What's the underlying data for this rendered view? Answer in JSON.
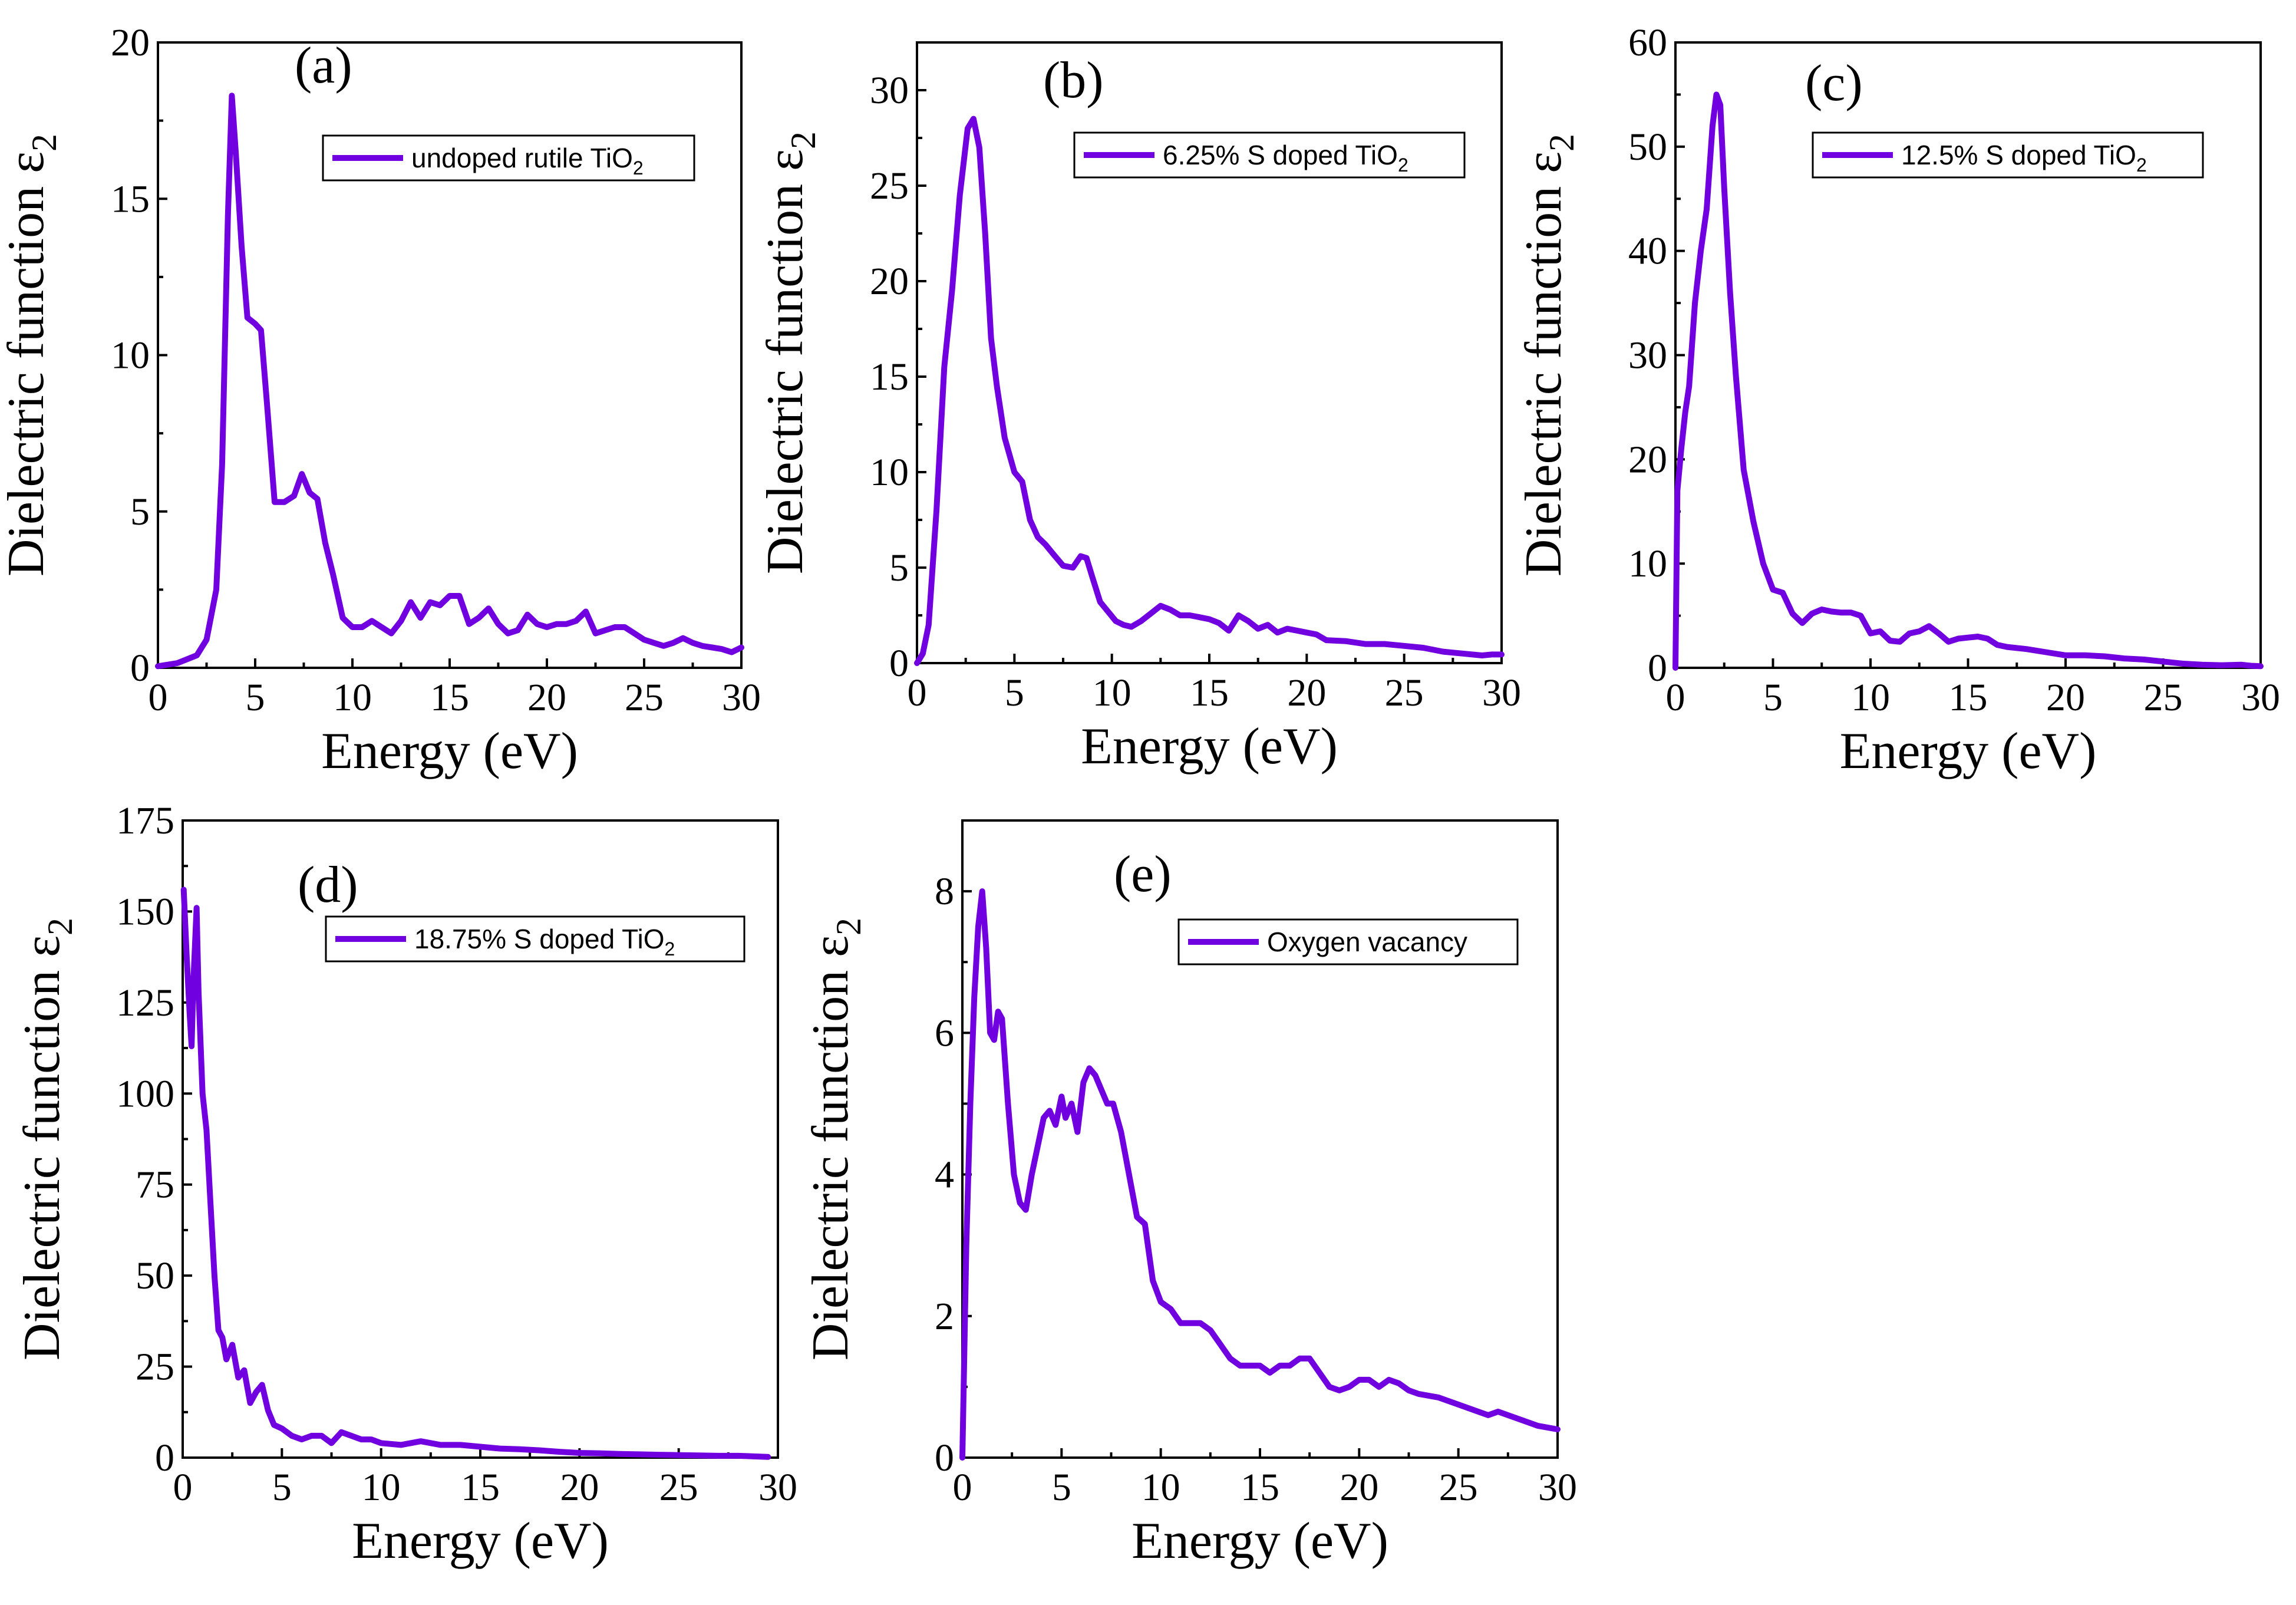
{
  "colors": {
    "series": "#7000e0",
    "axis": "#000000",
    "background": "#ffffff"
  },
  "chart_data": [
    {
      "type": "line",
      "panel_label": "(a)",
      "xlabel": "Energy (eV)",
      "ylabel_main": "Dielectric function ε",
      "ylabel_sub": "2",
      "xlim": [
        0,
        30
      ],
      "ylim": [
        0,
        20
      ],
      "xticks": [
        0,
        5,
        10,
        15,
        20,
        25,
        30
      ],
      "yticks": [
        0,
        5,
        10,
        15,
        20
      ],
      "legend_main": "undoped rutile TiO",
      "legend_sub": "2",
      "legend_position": "top-right",
      "series": [
        {
          "name": "undoped rutile TiO2",
          "x": [
            0,
            1,
            2,
            2.5,
            3,
            3.3,
            3.6,
            3.8,
            4.0,
            4.3,
            4.6,
            5.0,
            5.3,
            5.6,
            6.0,
            6.5,
            7.0,
            7.4,
            7.8,
            8.2,
            8.6,
            9.0,
            9.5,
            10.0,
            10.5,
            11.0,
            11.5,
            12.0,
            12.5,
            13.0,
            13.5,
            14.0,
            14.5,
            15.0,
            15.5,
            16.0,
            16.5,
            17.0,
            17.5,
            18.0,
            18.5,
            19.0,
            19.5,
            20.0,
            20.5,
            21.0,
            21.5,
            22.0,
            22.5,
            23.0,
            23.5,
            24.0,
            24.5,
            25.0,
            25.5,
            26.0,
            26.5,
            27.0,
            27.5,
            28.0,
            28.5,
            29.0,
            29.5,
            30.0
          ],
          "y": [
            0.05,
            0.15,
            0.4,
            0.9,
            2.5,
            6.5,
            14.5,
            18.3,
            16.5,
            13.5,
            11.2,
            11.0,
            10.8,
            8.5,
            5.3,
            5.3,
            5.5,
            6.2,
            5.6,
            5.4,
            4.0,
            3.0,
            1.6,
            1.3,
            1.3,
            1.5,
            1.3,
            1.1,
            1.5,
            2.1,
            1.6,
            2.1,
            2.0,
            2.3,
            2.3,
            1.4,
            1.6,
            1.9,
            1.4,
            1.1,
            1.2,
            1.7,
            1.4,
            1.3,
            1.4,
            1.4,
            1.5,
            1.8,
            1.1,
            1.2,
            1.3,
            1.3,
            1.1,
            0.9,
            0.8,
            0.7,
            0.8,
            0.95,
            0.8,
            0.7,
            0.65,
            0.6,
            0.5,
            0.65
          ]
        }
      ]
    },
    {
      "type": "line",
      "panel_label": "(b)",
      "xlabel": "Energy (eV)",
      "ylabel_main": "Dielectric function ε",
      "ylabel_sub": "2",
      "xlim": [
        0,
        30
      ],
      "ylim": [
        0,
        32.5
      ],
      "xticks": [
        0,
        5,
        10,
        15,
        20,
        25,
        30
      ],
      "yticks": [
        0,
        5,
        10,
        15,
        20,
        25,
        30
      ],
      "legend_main": "6.25% S doped TiO",
      "legend_sub": "2",
      "legend_position": "top-right",
      "series": [
        {
          "name": "6.25% S doped TiO2",
          "x": [
            0,
            0.3,
            0.6,
            1.0,
            1.4,
            1.8,
            2.2,
            2.6,
            2.9,
            3.2,
            3.5,
            3.8,
            4.1,
            4.5,
            5.0,
            5.4,
            5.8,
            6.2,
            6.6,
            7.0,
            7.5,
            8.0,
            8.4,
            8.7,
            9.0,
            9.4,
            9.8,
            10.2,
            10.6,
            11.0,
            11.5,
            12.0,
            12.5,
            13.0,
            13.5,
            14.0,
            14.5,
            15.0,
            15.5,
            16.0,
            16.5,
            17.0,
            17.5,
            18.0,
            18.5,
            19.0,
            19.5,
            20.0,
            20.5,
            21.0,
            22.0,
            23.0,
            24.0,
            25.0,
            26.0,
            27.0,
            28.0,
            29.0,
            29.5,
            30.0
          ],
          "y": [
            0,
            0.5,
            2.0,
            8.0,
            15.5,
            19.5,
            24.5,
            28.0,
            28.5,
            27.0,
            22.5,
            17.0,
            14.5,
            11.8,
            10.0,
            9.5,
            7.5,
            6.6,
            6.2,
            5.7,
            5.1,
            5.0,
            5.6,
            5.5,
            4.5,
            3.2,
            2.7,
            2.2,
            2.0,
            1.9,
            2.2,
            2.6,
            3.0,
            2.8,
            2.5,
            2.5,
            2.4,
            2.3,
            2.1,
            1.7,
            2.5,
            2.2,
            1.8,
            2.0,
            1.6,
            1.8,
            1.7,
            1.6,
            1.5,
            1.2,
            1.15,
            1.0,
            1.0,
            0.9,
            0.8,
            0.6,
            0.5,
            0.4,
            0.45,
            0.45
          ]
        }
      ]
    },
    {
      "type": "line",
      "panel_label": "(c)",
      "xlabel": "Energy (eV)",
      "ylabel_main": "Dielectric function ε",
      "ylabel_sub": "2",
      "xlim": [
        0,
        30
      ],
      "ylim": [
        0,
        60
      ],
      "xticks": [
        0,
        5,
        10,
        15,
        20,
        25,
        30
      ],
      "yticks": [
        0,
        10,
        20,
        30,
        40,
        50,
        60
      ],
      "legend_main": "12.5% S doped TiO",
      "legend_sub": "2",
      "legend_position": "top-right",
      "series": [
        {
          "name": "12.5% S doped TiO2",
          "x": [
            0,
            0.1,
            0.3,
            0.5,
            0.7,
            1.0,
            1.3,
            1.6,
            1.9,
            2.1,
            2.3,
            2.5,
            2.8,
            3.1,
            3.5,
            4.0,
            4.5,
            5.0,
            5.5,
            6.0,
            6.5,
            7.0,
            7.5,
            8.0,
            8.5,
            9.0,
            9.5,
            10.0,
            10.5,
            11.0,
            11.5,
            12.0,
            12.5,
            13.0,
            13.5,
            14.0,
            14.5,
            15.0,
            15.5,
            16.0,
            16.5,
            17.0,
            18.0,
            19.0,
            20.0,
            21.0,
            22.0,
            23.0,
            24.0,
            25.0,
            26.0,
            27.0,
            28.0,
            29.0,
            29.5,
            30.0
          ],
          "y": [
            0,
            17,
            21,
            24.5,
            27,
            35,
            40,
            44,
            52,
            55,
            54,
            46,
            36,
            28,
            19,
            14,
            10,
            7.5,
            7.2,
            5.2,
            4.3,
            5.2,
            5.6,
            5.4,
            5.3,
            5.3,
            5.0,
            3.3,
            3.5,
            2.6,
            2.5,
            3.3,
            3.5,
            4.0,
            3.3,
            2.5,
            2.8,
            2.9,
            3.0,
            2.8,
            2.2,
            2.0,
            1.8,
            1.5,
            1.2,
            1.2,
            1.1,
            0.9,
            0.8,
            0.6,
            0.4,
            0.3,
            0.25,
            0.3,
            0.2,
            0.15
          ]
        }
      ]
    },
    {
      "type": "line",
      "panel_label": "(d)",
      "xlabel": "Energy (eV)",
      "ylabel_main": "Dielectric function ε",
      "ylabel_sub": "2",
      "xlim": [
        0,
        30
      ],
      "ylim": [
        0,
        175
      ],
      "xticks": [
        0,
        5,
        10,
        15,
        20,
        25,
        30
      ],
      "yticks": [
        0,
        25,
        50,
        75,
        100,
        125,
        150,
        175
      ],
      "legend_main": "18.75% S doped TiO",
      "legend_sub": "2",
      "legend_position": "top-right",
      "series": [
        {
          "name": "18.75% S doped TiO2",
          "x": [
            0.05,
            0.2,
            0.35,
            0.45,
            0.55,
            0.7,
            0.8,
            1.0,
            1.2,
            1.4,
            1.6,
            1.8,
            2.0,
            2.2,
            2.5,
            2.8,
            3.1,
            3.4,
            3.7,
            4.0,
            4.3,
            4.6,
            5.0,
            5.5,
            6.0,
            6.5,
            7.0,
            7.5,
            8.0,
            8.5,
            9.0,
            9.5,
            10.0,
            11.0,
            12.0,
            13.0,
            14.0,
            15.0,
            16.0,
            17.0,
            18.0,
            19.0,
            20.0,
            21.0,
            22.0,
            23.0,
            24.0,
            25.0,
            26.0,
            27.0,
            28.0,
            29.0,
            29.5
          ],
          "y": [
            156,
            138,
            122,
            113,
            132,
            151,
            128,
            100,
            90,
            70,
            50,
            35,
            33,
            27,
            31,
            22,
            24,
            15,
            18,
            20,
            13,
            9,
            8,
            6,
            5,
            6,
            6,
            4,
            7,
            6,
            5,
            5,
            4,
            3.5,
            4.5,
            3.5,
            3.5,
            3,
            2.5,
            2.3,
            2,
            1.6,
            1.3,
            1.2,
            1.0,
            0.9,
            0.8,
            0.7,
            0.6,
            0.5,
            0.5,
            0.3,
            0.2
          ]
        }
      ]
    },
    {
      "type": "line",
      "panel_label": "(e)",
      "xlabel": "Energy (eV)",
      "ylabel_main": "Dielectric function ε",
      "ylabel_sub": "2",
      "xlim": [
        0,
        30
      ],
      "ylim": [
        0,
        9
      ],
      "xticks": [
        0,
        5,
        10,
        15,
        20,
        25,
        30
      ],
      "yticks": [
        0,
        2,
        4,
        6,
        8
      ],
      "legend_main": "Oxygen vacancy",
      "legend_sub": "",
      "legend_position": "top-right",
      "series": [
        {
          "name": "Oxygen vacancy",
          "x": [
            0,
            0.2,
            0.4,
            0.6,
            0.8,
            1.0,
            1.2,
            1.4,
            1.6,
            1.8,
            2.0,
            2.3,
            2.6,
            2.9,
            3.2,
            3.5,
            3.8,
            4.1,
            4.4,
            4.7,
            5.0,
            5.2,
            5.5,
            5.8,
            6.1,
            6.4,
            6.7,
            7.0,
            7.3,
            7.6,
            8.0,
            8.4,
            8.8,
            9.2,
            9.6,
            10.0,
            10.5,
            11.0,
            11.5,
            12.0,
            12.5,
            13.0,
            13.5,
            14.0,
            14.5,
            15.0,
            15.5,
            16.0,
            16.5,
            17.0,
            17.5,
            18.0,
            18.5,
            19.0,
            19.5,
            20.0,
            20.5,
            21.0,
            21.5,
            22.0,
            22.5,
            23.0,
            24.0,
            25.0,
            26.0,
            26.5,
            27.0,
            28.0,
            29.0,
            30.0
          ],
          "y": [
            0,
            3.0,
            5.0,
            6.5,
            7.5,
            8.0,
            7.2,
            6.0,
            5.9,
            6.3,
            6.2,
            5.0,
            4.0,
            3.6,
            3.5,
            4.0,
            4.4,
            4.8,
            4.9,
            4.7,
            5.1,
            4.8,
            5.0,
            4.6,
            5.3,
            5.5,
            5.4,
            5.2,
            5.0,
            5.0,
            4.6,
            4.0,
            3.4,
            3.3,
            2.5,
            2.2,
            2.1,
            1.9,
            1.9,
            1.9,
            1.8,
            1.6,
            1.4,
            1.3,
            1.3,
            1.3,
            1.2,
            1.3,
            1.3,
            1.4,
            1.4,
            1.2,
            1.0,
            0.95,
            1.0,
            1.1,
            1.1,
            1.0,
            1.1,
            1.05,
            0.95,
            0.9,
            0.85,
            0.75,
            0.65,
            0.6,
            0.65,
            0.55,
            0.45,
            0.4
          ]
        }
      ]
    }
  ]
}
